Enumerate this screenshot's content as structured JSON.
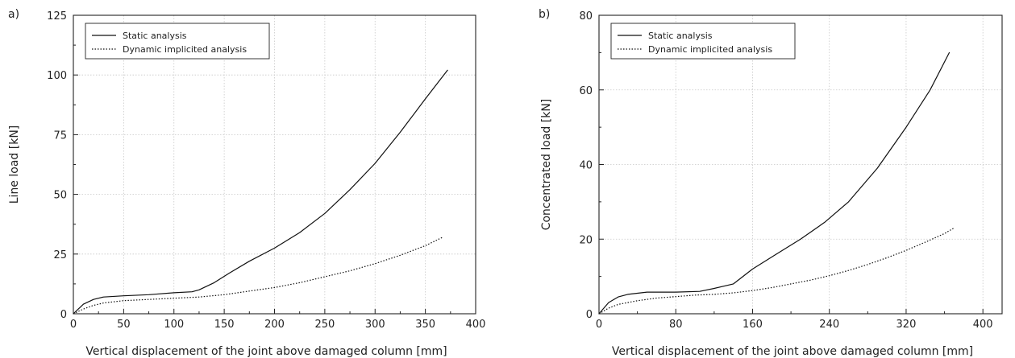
{
  "chart_data": [
    {
      "type": "line",
      "panel_label": "a)",
      "xlabel": "Vertical displacement of the joint above damaged column [mm]",
      "ylabel": "Line load [kN]",
      "xlim": [
        0,
        400
      ],
      "ylim": [
        0,
        125
      ],
      "xticks": [
        0,
        50,
        100,
        150,
        200,
        250,
        300,
        350,
        400
      ],
      "yticks": [
        0,
        25,
        50,
        75,
        100,
        125
      ],
      "grid": true,
      "legend_position": "top-left",
      "series": [
        {
          "name": "Static analysis",
          "style": "solid",
          "x": [
            0,
            5,
            10,
            20,
            30,
            50,
            75,
            100,
            118,
            125,
            140,
            155,
            175,
            200,
            225,
            250,
            275,
            300,
            325,
            350,
            372
          ],
          "y": [
            0,
            2,
            4,
            6,
            7,
            7.5,
            8,
            8.8,
            9.2,
            10,
            13,
            17,
            22,
            27.5,
            34,
            42,
            52,
            63,
            76,
            90,
            102
          ]
        },
        {
          "name": "Dynamic implicited analysis",
          "style": "dotted",
          "x": [
            0,
            10,
            20,
            30,
            50,
            75,
            100,
            125,
            150,
            175,
            200,
            225,
            250,
            275,
            300,
            325,
            350,
            367
          ],
          "y": [
            0,
            2,
            3.5,
            4.5,
            5.5,
            6,
            6.5,
            7,
            8,
            9.5,
            11,
            13,
            15.5,
            18,
            21,
            24.5,
            28.5,
            32
          ]
        }
      ]
    },
    {
      "type": "line",
      "panel_label": "b)",
      "xlabel": "Vertical displacement of the joint above damaged column [mm]",
      "ylabel": "Concentrated load [kN]",
      "xlim": [
        0,
        420
      ],
      "ylim": [
        0,
        80
      ],
      "xticks": [
        0,
        80,
        160,
        240,
        320,
        400
      ],
      "yticks": [
        0,
        20,
        40,
        60,
        80
      ],
      "grid": true,
      "legend_position": "top-left",
      "series": [
        {
          "name": "Static analysis",
          "style": "solid",
          "x": [
            0,
            5,
            10,
            20,
            30,
            50,
            80,
            105,
            120,
            140,
            150,
            160,
            185,
            210,
            235,
            260,
            290,
            320,
            345,
            365
          ],
          "y": [
            0,
            1.5,
            3,
            4.5,
            5.2,
            5.8,
            5.8,
            6,
            6.8,
            8,
            10,
            12,
            16,
            20,
            24.5,
            30,
            39,
            50,
            60,
            70
          ]
        },
        {
          "name": "Dynamic implicited analysis",
          "style": "dotted",
          "x": [
            0,
            10,
            20,
            40,
            60,
            80,
            100,
            120,
            140,
            160,
            180,
            200,
            220,
            240,
            260,
            280,
            300,
            320,
            340,
            360,
            370
          ],
          "y": [
            0,
            1.5,
            2.5,
            3.5,
            4.2,
            4.6,
            5,
            5.2,
            5.6,
            6.2,
            7,
            8,
            9,
            10.2,
            11.6,
            13.2,
            15,
            17,
            19.2,
            21.5,
            23
          ]
        }
      ]
    }
  ]
}
